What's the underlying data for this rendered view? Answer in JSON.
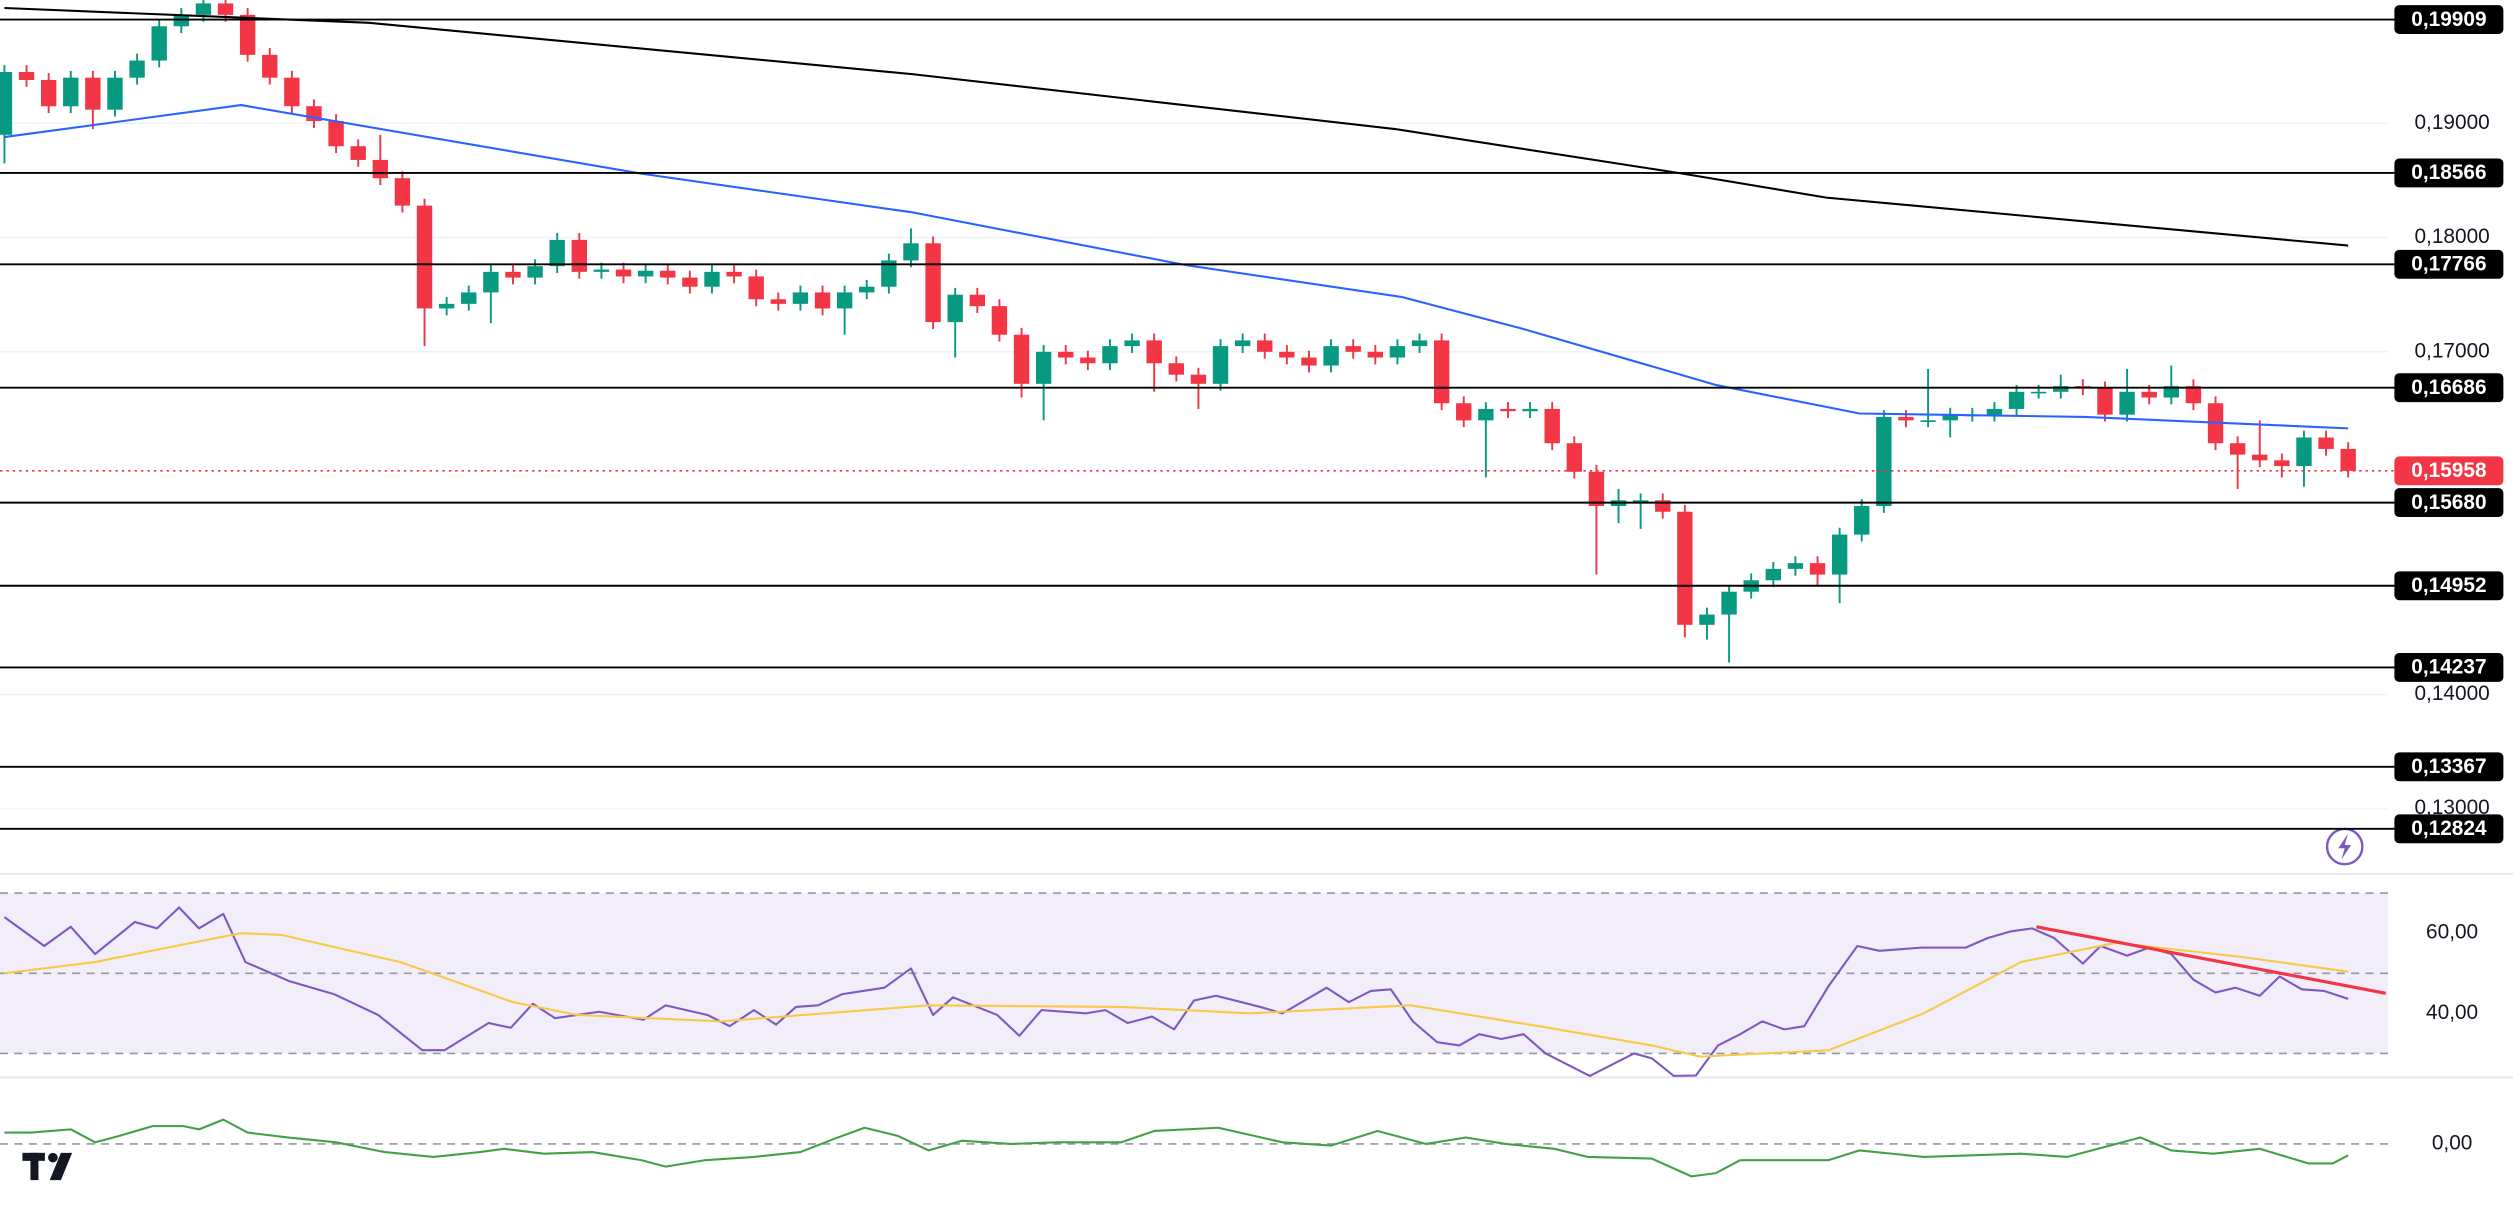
{
  "chart_data": [
    {
      "type": "candlestick",
      "xlim": [
        -0.2,
        107.8
      ],
      "ylim": [
        0.1243,
        0.2008
      ],
      "yticks": [
        {
          "value": 0.19,
          "label": "0,19000"
        },
        {
          "value": 0.18,
          "label": "0,18000"
        },
        {
          "value": 0.17,
          "label": "0,17000"
        },
        {
          "value": 0.14,
          "label": "0,14000"
        },
        {
          "value": 0.13,
          "label": "0,13000"
        }
      ],
      "up_color": "#089981",
      "down_color": "#f23645",
      "open": [
        0.189,
        0.1945,
        0.1938,
        0.1915,
        0.194,
        0.1912,
        0.194,
        0.1955,
        0.1985,
        0.1995,
        0.2005,
        0.1995,
        0.196,
        0.194,
        0.1915,
        0.1902,
        0.188,
        0.1868,
        0.1852,
        0.1828,
        0.1738,
        0.1742,
        0.1752,
        0.177,
        0.1765,
        0.1775,
        0.1798,
        0.177,
        0.1772,
        0.1766,
        0.1771,
        0.1765,
        0.1757,
        0.177,
        0.1766,
        0.1746,
        0.1742,
        0.1752,
        0.1738,
        0.1752,
        0.1757,
        0.178,
        0.1795,
        0.1726,
        0.175,
        0.174,
        0.1715,
        0.1672,
        0.17,
        0.1695,
        0.169,
        0.1705,
        0.171,
        0.169,
        0.168,
        0.1672,
        0.1705,
        0.171,
        0.17,
        0.1695,
        0.1688,
        0.1705,
        0.17,
        0.1695,
        0.1705,
        0.171,
        0.1655,
        0.164,
        0.165,
        0.1648,
        0.165,
        0.162,
        0.1595,
        0.1565,
        0.157,
        0.157,
        0.156,
        0.1461,
        0.147,
        0.149,
        0.15,
        0.151,
        0.1515,
        0.1505,
        0.154,
        0.1565,
        0.1643,
        0.164,
        0.164,
        0.1645,
        0.1645,
        0.165,
        0.1665,
        0.1665,
        0.167,
        0.1668,
        0.1645,
        0.1665,
        0.166,
        0.167,
        0.1655,
        0.162,
        0.161,
        0.1605,
        0.16,
        0.1625,
        0.1615
      ],
      "high": [
        0.1951,
        0.1951,
        0.1944,
        0.1946,
        0.1946,
        0.1946,
        0.1961,
        0.1991,
        0.2001,
        0.2011,
        0.2011,
        0.2001,
        0.1966,
        0.1946,
        0.1921,
        0.1908,
        0.1886,
        0.189,
        0.1858,
        0.1834,
        0.1748,
        0.1758,
        0.1776,
        0.1776,
        0.1781,
        0.1804,
        0.1804,
        0.1778,
        0.1778,
        0.1777,
        0.1777,
        0.1771,
        0.1776,
        0.1776,
        0.1772,
        0.1752,
        0.1758,
        0.1758,
        0.1758,
        0.1763,
        0.1786,
        0.1808,
        0.1801,
        0.1756,
        0.1756,
        0.1746,
        0.1721,
        0.1706,
        0.1706,
        0.1701,
        0.1711,
        0.1716,
        0.1716,
        0.1696,
        0.1686,
        0.1711,
        0.1716,
        0.1716,
        0.1706,
        0.1701,
        0.1711,
        0.1711,
        0.1706,
        0.1711,
        0.1716,
        0.1716,
        0.1661,
        0.1656,
        0.1656,
        0.1656,
        0.1656,
        0.1626,
        0.1601,
        0.158,
        0.1576,
        0.1576,
        0.1566,
        0.1476,
        0.1496,
        0.1506,
        0.1516,
        0.1521,
        0.1521,
        0.1546,
        0.1571,
        0.1649,
        0.1649,
        0.1685,
        0.1651,
        0.1651,
        0.1656,
        0.1671,
        0.1671,
        0.168,
        0.1676,
        0.1674,
        0.1685,
        0.1671,
        0.1688,
        0.1676,
        0.1661,
        0.1626,
        0.164,
        0.1611,
        0.1631,
        0.1631,
        0.1621
      ],
      "low": [
        0.1865,
        0.1932,
        0.1909,
        0.1909,
        0.1895,
        0.1906,
        0.1934,
        0.1949,
        0.1979,
        0.1989,
        0.1989,
        0.1954,
        0.1934,
        0.1909,
        0.1896,
        0.1874,
        0.1862,
        0.1846,
        0.1822,
        0.1705,
        0.1732,
        0.1736,
        0.1725,
        0.1759,
        0.1759,
        0.1769,
        0.1764,
        0.1764,
        0.176,
        0.176,
        0.1759,
        0.1751,
        0.1751,
        0.176,
        0.174,
        0.1736,
        0.1736,
        0.1732,
        0.1715,
        0.1746,
        0.1751,
        0.1774,
        0.172,
        0.1695,
        0.1734,
        0.1709,
        0.166,
        0.164,
        0.1689,
        0.1684,
        0.1684,
        0.1699,
        0.1665,
        0.1674,
        0.165,
        0.1666,
        0.1699,
        0.1694,
        0.1689,
        0.1682,
        0.1682,
        0.1694,
        0.1689,
        0.1689,
        0.1699,
        0.1649,
        0.1634,
        0.159,
        0.1642,
        0.1642,
        0.1614,
        0.1589,
        0.1505,
        0.155,
        0.1545,
        0.1554,
        0.145,
        0.1448,
        0.1428,
        0.1484,
        0.1494,
        0.1504,
        0.1495,
        0.148,
        0.1534,
        0.1559,
        0.1634,
        0.1634,
        0.1625,
        0.1639,
        0.1639,
        0.1644,
        0.1659,
        0.1659,
        0.1662,
        0.1639,
        0.1639,
        0.1654,
        0.1654,
        0.1649,
        0.1614,
        0.158,
        0.1599,
        0.159,
        0.1582,
        0.1609,
        0.159
      ],
      "close": [
        0.1945,
        0.1938,
        0.1915,
        0.194,
        0.1912,
        0.194,
        0.1955,
        0.1985,
        0.1995,
        0.2005,
        0.1995,
        0.196,
        0.194,
        0.1915,
        0.1902,
        0.188,
        0.1868,
        0.1852,
        0.1828,
        0.1738,
        0.1742,
        0.1752,
        0.177,
        0.1765,
        0.1775,
        0.1798,
        0.177,
        0.1772,
        0.1766,
        0.1771,
        0.1765,
        0.1757,
        0.177,
        0.1766,
        0.1746,
        0.1742,
        0.1752,
        0.1738,
        0.1752,
        0.1757,
        0.178,
        0.1795,
        0.1726,
        0.175,
        0.174,
        0.1715,
        0.1672,
        0.17,
        0.1695,
        0.169,
        0.1705,
        0.171,
        0.169,
        0.168,
        0.1672,
        0.1705,
        0.171,
        0.17,
        0.1695,
        0.1688,
        0.1705,
        0.17,
        0.1695,
        0.1705,
        0.171,
        0.1655,
        0.164,
        0.165,
        0.1648,
        0.165,
        0.162,
        0.1595,
        0.1565,
        0.157,
        0.157,
        0.156,
        0.1461,
        0.147,
        0.149,
        0.15,
        0.151,
        0.1515,
        0.1505,
        0.154,
        0.1565,
        0.1643,
        0.164,
        0.164,
        0.1645,
        0.1645,
        0.165,
        0.1665,
        0.1665,
        0.167,
        0.1668,
        0.1645,
        0.1665,
        0.166,
        0.167,
        0.1655,
        0.162,
        0.161,
        0.1605,
        0.16,
        0.1625,
        0.1615,
        0.15958
      ],
      "series": [
        {
          "color": "#2962ff",
          "x": [
            0,
            10.7,
            28.8,
            41.1,
            53.4,
            63.2,
            68.7,
            77.4,
            83.9,
            94.1,
            106
          ],
          "values": [
            0.1888,
            0.1916,
            0.1856,
            0.1822,
            0.1776,
            0.1748,
            0.172,
            0.1671,
            0.1646,
            0.1643,
            0.1633
          ]
        },
        {
          "color": "#000000",
          "x": [
            0,
            16.5,
            41.1,
            62.9,
            75.9,
            82.4,
            106
          ],
          "values": [
            0.2001,
            0.1988,
            0.1943,
            0.1895,
            0.1856,
            0.1835,
            0.1793
          ]
        }
      ],
      "levels": [
        {
          "value": 0.19909,
          "label": "0,19909"
        },
        {
          "value": 0.18566,
          "label": "0,18566"
        },
        {
          "value": 0.17766,
          "label": "0,17766"
        },
        {
          "value": 0.16686,
          "label": "0,16686"
        },
        {
          "value": 0.1568,
          "label": "0,15680"
        },
        {
          "value": 0.14952,
          "label": "0,14952"
        },
        {
          "value": 0.14237,
          "label": "0,14237"
        },
        {
          "value": 0.13367,
          "label": "0,13367"
        },
        {
          "value": 0.12824,
          "label": "0,12824"
        }
      ],
      "last_price": {
        "value": 0.15958,
        "label": "0,15958",
        "color": "#f23645"
      }
    },
    {
      "type": "line",
      "xlim": [
        -0.2,
        107.8
      ],
      "ylim": [
        24,
        74.8
      ],
      "yticks": [
        {
          "value": 60,
          "label": "60,00"
        },
        {
          "value": 40,
          "label": "40,00"
        }
      ],
      "levels": [
        70,
        50,
        30
      ],
      "band_color": "#7e57c2",
      "series": [
        {
          "color": "#7e57c2",
          "x": [
            0,
            1.8,
            3.0,
            4.1,
            5.9,
            6.9,
            7.9,
            8.8,
            9.9,
            10.9,
            12.9,
            14.9,
            16.9,
            18.9,
            19.9,
            21.9,
            22.9,
            23.9,
            24.9,
            26.9,
            28.9,
            29.9,
            31.8,
            32.8,
            33.9,
            34.9,
            35.8,
            36.8,
            37.9,
            39.8,
            41.0,
            42.0,
            42.9,
            44.9,
            45.9,
            46.9,
            48.9,
            49.8,
            50.8,
            51.9,
            52.9,
            53.8,
            54.8,
            56.8,
            57.8,
            59.8,
            60.8,
            61.8,
            62.7,
            63.7,
            64.8,
            65.8,
            66.7,
            67.7,
            68.7,
            69.7,
            70.7,
            71.7,
            72.7,
            73.7,
            74.5,
            75.5,
            76.5,
            77.5,
            78.5,
            79.5,
            80.5,
            81.4,
            82.5,
            83.8,
            84.8,
            86.7,
            88.7,
            89.7,
            90.7,
            91.7,
            92.7,
            94.0,
            94.8,
            96.0,
            97.0,
            98.0,
            99.0,
            100.0,
            100.9,
            102.0,
            102.9,
            103.9,
            104.9,
            106
          ],
          "values": [
            64,
            56.8,
            61.6,
            54.8,
            62.8,
            61.2,
            66.4,
            61.2,
            64.8,
            52.8,
            48,
            44.8,
            39.6,
            30.8,
            30.8,
            37.6,
            36.4,
            42.4,
            38.8,
            40.4,
            38.4,
            42,
            39.6,
            36.8,
            40.8,
            37.2,
            41.6,
            42,
            44.8,
            46.4,
            51.2,
            39.6,
            44,
            39.6,
            34.4,
            40.8,
            40,
            40.8,
            37.6,
            39.2,
            36,
            43.2,
            44.4,
            41.6,
            40,
            46.4,
            42.8,
            45.6,
            46,
            38,
            32.8,
            32,
            34.8,
            33.6,
            34.8,
            30,
            27.2,
            24.4,
            27.2,
            30,
            28.8,
            24.4,
            24.5,
            32,
            34.8,
            38,
            36,
            36.8,
            46.8,
            56.8,
            55.6,
            56.4,
            56.4,
            58.8,
            60.4,
            61.2,
            58.8,
            52.4,
            56.8,
            54.4,
            56.4,
            54.8,
            48.4,
            45.2,
            46.4,
            44.4,
            49.2,
            46,
            45.6,
            43.6
          ]
        },
        {
          "color": "#f7c948",
          "x": [
            0,
            4.1,
            7.0,
            10.7,
            12.5,
            17.9,
            23.0,
            25.9,
            32.4,
            41.8,
            50.5,
            56.3,
            63.6,
            69.4,
            74.5,
            76.7,
            82.5,
            86.8,
            91.2,
            95.5,
            101.3,
            106
          ],
          "values": [
            50,
            52.8,
            56,
            60,
            59.6,
            52.8,
            42.8,
            39.6,
            38,
            42,
            41.6,
            40,
            42,
            36.8,
            32,
            29.2,
            30.8,
            40,
            52.8,
            57.6,
            54,
            50.4
          ]
        },
        {
          "color": "#f23645",
          "x": [
            91.9,
            107.7
          ],
          "values": [
            61.6,
            45
          ]
        }
      ]
    },
    {
      "type": "line",
      "xlim": [
        -0.2,
        107.8
      ],
      "ylim": [
        -2.5,
        2.05
      ],
      "yticks": [
        {
          "value": 0,
          "label": "0,00"
        }
      ],
      "levels": [
        0
      ],
      "series": [
        {
          "color": "#43a047",
          "x": [
            0,
            1.2,
            3.0,
            4.1,
            5.2,
            6.7,
            8.1,
            8.8,
            9.9,
            11.0,
            12.8,
            15.0,
            17.2,
            19.4,
            21.5,
            22.6,
            24.4,
            26.6,
            28.8,
            29.9,
            31.7,
            33.9,
            36.0,
            37.5,
            38.9,
            40.4,
            41.8,
            43.3,
            45.5,
            47.6,
            50.5,
            52.0,
            54.9,
            57.8,
            60.0,
            62.1,
            64.3,
            66.1,
            67.9,
            70.1,
            71.6,
            74.5,
            76.3,
            77.4,
            78.5,
            80.3,
            82.5,
            83.9,
            86.8,
            91.2,
            93.3,
            95.5,
            96.6,
            98.0,
            99.9,
            102.0,
            104.2,
            105.3,
            106.0
          ],
          "values": [
            0.35,
            0.35,
            0.45,
            0.05,
            0.25,
            0.55,
            0.55,
            0.45,
            0.75,
            0.35,
            0.2,
            0.05,
            -0.25,
            -0.4,
            -0.25,
            -0.15,
            -0.3,
            -0.25,
            -0.5,
            -0.7,
            -0.5,
            -0.4,
            -0.25,
            0.15,
            0.5,
            0.25,
            -0.2,
            0.1,
            0,
            0.05,
            0.05,
            0.4,
            0.5,
            0.05,
            -0.05,
            0.4,
            0,
            0.2,
            0,
            -0.15,
            -0.4,
            -0.45,
            -1.0,
            -0.9,
            -0.5,
            -0.5,
            -0.5,
            -0.2,
            -0.4,
            -0.3,
            -0.4,
            0,
            0.2,
            -0.2,
            -0.3,
            -0.15,
            -0.6,
            -0.6,
            -0.35
          ]
        }
      ]
    }
  ]
}
